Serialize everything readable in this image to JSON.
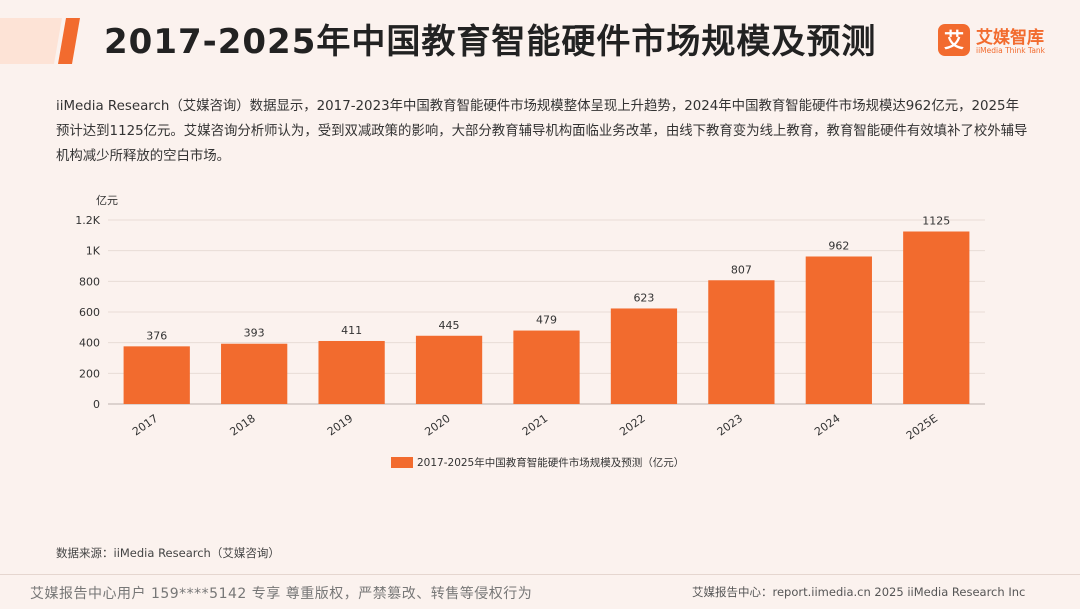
{
  "header": {
    "title": "2017-2025年中国教育智能硬件市场规模及预测",
    "logo_mark": "艾",
    "logo_cn": "艾媒智库",
    "logo_en": "iiMedia Think Tank"
  },
  "description": "iiMedia Research（艾媒咨询）数据显示，2017-2023年中国教育智能硬件市场规模整体呈现上升趋势，2024年中国教育智能硬件市场规模达962亿元，2025年预计达到1125亿元。艾媒咨询分析师认为，受到双减政策的影响，大部分教育辅导机构面临业务改革，由线下教育变为线上教育，教育智能硬件有效填补了校外辅导机构减少所释放的空白市场。",
  "chart_data": {
    "type": "bar",
    "title": "2017-2025年中国教育智能硬件市场规模及预测",
    "ylabel": "亿元",
    "xlabel": "",
    "categories": [
      "2017",
      "2018",
      "2019",
      "2020",
      "2021",
      "2022",
      "2023",
      "2024",
      "2025E"
    ],
    "series": [
      {
        "name": "2017-2025年中国教育智能硬件市场规模及预测（亿元）",
        "values": [
          376,
          393,
          411,
          445,
          479,
          623,
          807,
          962,
          1125
        ]
      }
    ],
    "ylim": [
      0,
      1200
    ],
    "yticks": [
      "0",
      "200",
      "400",
      "600",
      "800",
      "1K",
      "1.2K"
    ],
    "grid": true,
    "legend": "bottom-center"
  },
  "colors": {
    "bar": "#f26b2e",
    "accent": "#f26b2e",
    "background": "#fbf2ee"
  },
  "source": "数据来源：iiMedia Research（艾媒咨询）",
  "footer": {
    "left": "艾媒报告中心用户 159****5142 专享 尊重版权，严禁篡改、转售等侵权行为",
    "right": "艾媒报告中心：report.iimedia.cn  2025 iiMedia Research Inc"
  }
}
